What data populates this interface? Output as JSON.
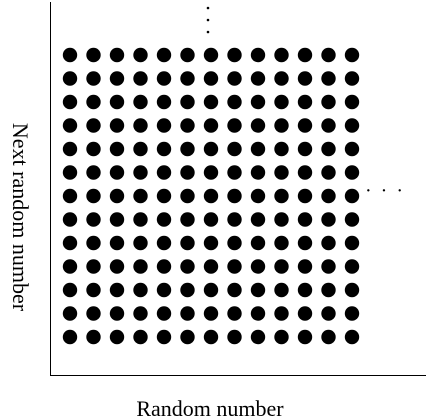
{
  "diagram": {
    "x_axis_label": "Random number",
    "y_axis_label": "Next random number",
    "right_continuation": "· · ·",
    "top_continuation": "·\n·\n·",
    "grid": {
      "rows": 13,
      "cols": 13
    },
    "colors": {
      "dot": "#000000",
      "axis": "#000000",
      "background": "#ffffff"
    }
  }
}
